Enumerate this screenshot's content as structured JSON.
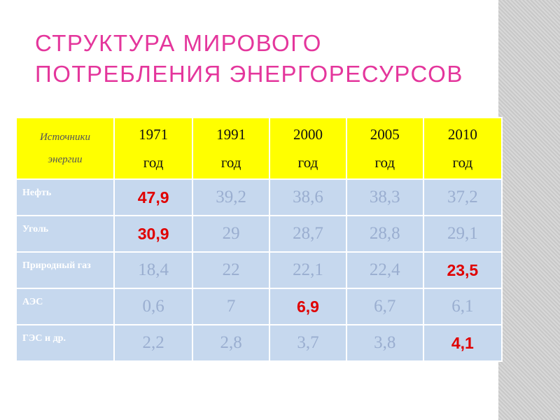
{
  "title": {
    "lines": [
      "СТРУКТУРА МИРОВОГО",
      "ПОТРЕБЛЕНИЯ ЭНЕРГОРЕСУРСОВ"
    ]
  },
  "table": {
    "header": [
      [
        "Источники",
        "энергии"
      ],
      [
        "1971",
        "год"
      ],
      [
        "1991",
        "год"
      ],
      [
        "2000",
        "год"
      ],
      [
        "2005",
        "год"
      ],
      [
        "2010",
        "год"
      ]
    ],
    "rows": [
      [
        "Нефть",
        "47,9",
        "39,2",
        "38,6",
        "38,3",
        "37,2"
      ],
      [
        "Уголь",
        "30,9",
        "29",
        "28,7",
        "28,8",
        "29,1"
      ],
      [
        "Природный газ",
        "18,4",
        "22",
        "22,1",
        "22,4",
        "23,5"
      ],
      [
        "АЭС",
        "0,6",
        "7",
        "6,9",
        "6,7",
        "6,1"
      ],
      [
        "ГЭС и др.",
        "2,2",
        "2,8",
        "3,7",
        "3,8",
        "4,1"
      ]
    ]
  }
}
